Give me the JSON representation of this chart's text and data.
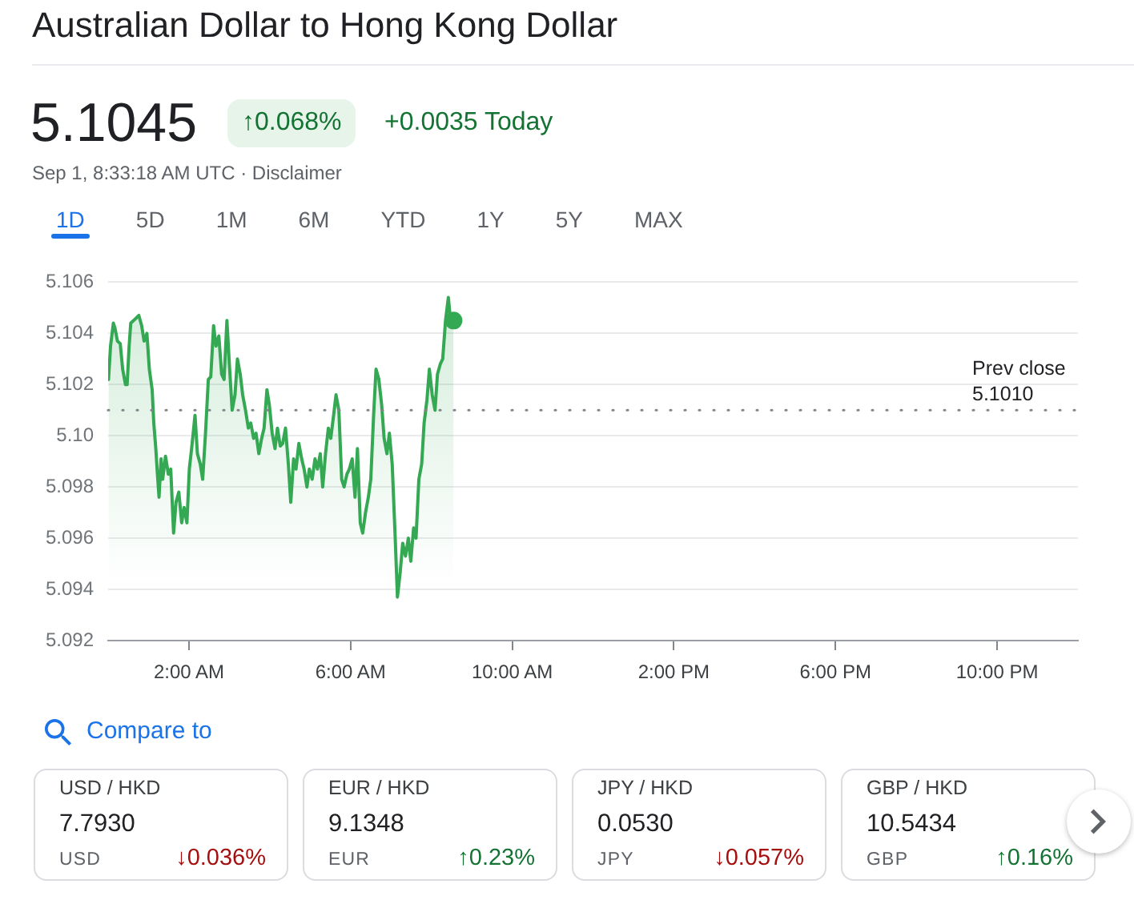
{
  "chart_data": [
    {
      "type": "area",
      "title": "Australian Dollar to Hong Kong Dollar",
      "subtitle": "Sep 1, 8:33:18 AM UTC · Disclaimer",
      "annotations": [
        "5.1045",
        "↑0.068%",
        "+0.0035 Today",
        "1D",
        "5D",
        "1M",
        "6M",
        "YTD",
        "1Y",
        "5Y",
        "MAX"
      ],
      "xlim": [
        0,
        24
      ],
      "xticks": [
        {
          "value": 2,
          "label": "2:00 AM"
        },
        {
          "value": 6,
          "label": "6:00 AM"
        },
        {
          "value": 10,
          "label": "10:00 AM"
        },
        {
          "value": 14,
          "label": "2:00 PM"
        },
        {
          "value": 18,
          "label": "6:00 PM"
        },
        {
          "value": 22,
          "label": "10:00 PM"
        }
      ],
      "ylim": [
        5.092,
        5.106
      ],
      "yticks": [
        5.092,
        5.094,
        5.096,
        5.098,
        {
          "value": 5.1,
          "label": "5.10"
        },
        5.102,
        5.104,
        5.106
      ],
      "grid": "y",
      "series": [
        {
          "type": "area",
          "color": "#34a853",
          "x": [
            0.01,
            0.06,
            0.13,
            0.17,
            0.23,
            0.3,
            0.36,
            0.43,
            0.47,
            0.52,
            0.56,
            0.63,
            0.76,
            0.83,
            0.89,
            0.96,
            1.02,
            1.09,
            1.13,
            1.18,
            1.22,
            1.26,
            1.31,
            1.35,
            1.42,
            1.49,
            1.55,
            1.62,
            1.68,
            1.75,
            1.82,
            1.88,
            1.95,
            2.01,
            2.08,
            2.15,
            2.21,
            2.28,
            2.34,
            2.41,
            2.48,
            2.54,
            2.61,
            2.67,
            2.74,
            2.81,
            2.87,
            2.94,
            3.0,
            3.07,
            3.14,
            3.2,
            3.27,
            3.33,
            3.4,
            3.47,
            3.53,
            3.6,
            3.66,
            3.73,
            3.8,
            3.86,
            3.93,
            3.99,
            4.06,
            4.13,
            4.19,
            4.26,
            4.32,
            4.39,
            4.46,
            4.52,
            4.59,
            4.65,
            4.72,
            4.79,
            4.85,
            4.92,
            4.98,
            5.05,
            5.12,
            5.18,
            5.25,
            5.31,
            5.38,
            5.45,
            5.51,
            5.58,
            5.64,
            5.71,
            5.78,
            5.84,
            5.91,
            5.97,
            6.04,
            6.11,
            6.17,
            6.24,
            6.3,
            6.37,
            6.44,
            6.5,
            6.57,
            6.63,
            6.7,
            6.77,
            6.83,
            6.9,
            6.96,
            7.03,
            7.1,
            7.16,
            7.23,
            7.29,
            7.36,
            7.43,
            7.49,
            7.56,
            7.62,
            7.69,
            7.76,
            7.82,
            7.89,
            7.95,
            8.02,
            8.09,
            8.15,
            8.22,
            8.28,
            8.35,
            8.42,
            8.48,
            8.55
          ],
          "values": [
            5.1022,
            5.1035,
            5.1044,
            5.1042,
            5.1037,
            5.1036,
            5.1026,
            5.102,
            5.102,
            5.1035,
            5.1044,
            5.1045,
            5.1047,
            5.1043,
            5.1037,
            5.104,
            5.1026,
            5.1018,
            5.1005,
            5.0995,
            5.0985,
            5.0976,
            5.0991,
            5.0983,
            5.0992,
            5.0985,
            5.0987,
            5.0962,
            5.0974,
            5.0978,
            5.0966,
            5.0972,
            5.0966,
            5.0987,
            5.0997,
            5.1008,
            5.0993,
            5.0989,
            5.0983,
            5.1001,
            5.1022,
            5.1023,
            5.1043,
            5.1035,
            5.1039,
            5.1024,
            5.1022,
            5.1045,
            5.1028,
            5.101,
            5.1016,
            5.103,
            5.1024,
            5.1016,
            5.101,
            5.1003,
            5.1005,
            5.0999,
            5.1001,
            5.0993,
            5.0999,
            5.1003,
            5.1018,
            5.1012,
            5.1001,
            5.0995,
            5.1003,
            5.0996,
            5.0997,
            5.1003,
            5.0989,
            5.0974,
            5.0991,
            5.0987,
            5.0997,
            5.0991,
            5.0987,
            5.098,
            5.0987,
            5.0983,
            5.0991,
            5.0987,
            5.0993,
            5.098,
            5.0993,
            5.1003,
            5.0999,
            5.1008,
            5.1016,
            5.101,
            5.0983,
            5.098,
            5.0985,
            5.0987,
            5.0991,
            5.0976,
            5.0995,
            5.0966,
            5.0962,
            5.097,
            5.0976,
            5.0983,
            5.1008,
            5.1026,
            5.1022,
            5.1012,
            5.0999,
            5.0993,
            5.1001,
            5.0989,
            5.0962,
            5.0937,
            5.0947,
            5.0958,
            5.0953,
            5.096,
            5.0951,
            5.0964,
            5.096,
            5.0983,
            5.0989,
            5.1005,
            5.1014,
            5.1026,
            5.1016,
            5.101,
            5.1024,
            5.1028,
            5.103,
            5.1045,
            5.1054,
            5.1044,
            5.1045
          ]
        },
        {
          "type": "scatter",
          "color": "#34a853",
          "marker": "circle",
          "x": [
            8.55
          ],
          "values": [
            5.1045
          ]
        }
      ],
      "ref_lines": [
        {
          "axis": "y",
          "value": 5.101,
          "label": "Prev close 5.1010",
          "line_style": "dotted",
          "color": "#80868b"
        }
      ]
    },
    {
      "type": "other",
      "title": "Compare to",
      "categories": [
        "USD / HKD",
        "EUR / HKD",
        "JPY / HKD",
        "GBP / HKD"
      ],
      "annotations": [
        "7.7930",
        "USD",
        "↓0.036%",
        "9.1348",
        "EUR",
        "↑0.23%",
        "0.0530",
        "JPY",
        "↓0.057%",
        "10.5434",
        "GBP",
        "↑0.16%"
      ],
      "colors": [
        "#a50e0e",
        "#137333",
        "#a50e0e",
        "#137333"
      ]
    }
  ]
}
